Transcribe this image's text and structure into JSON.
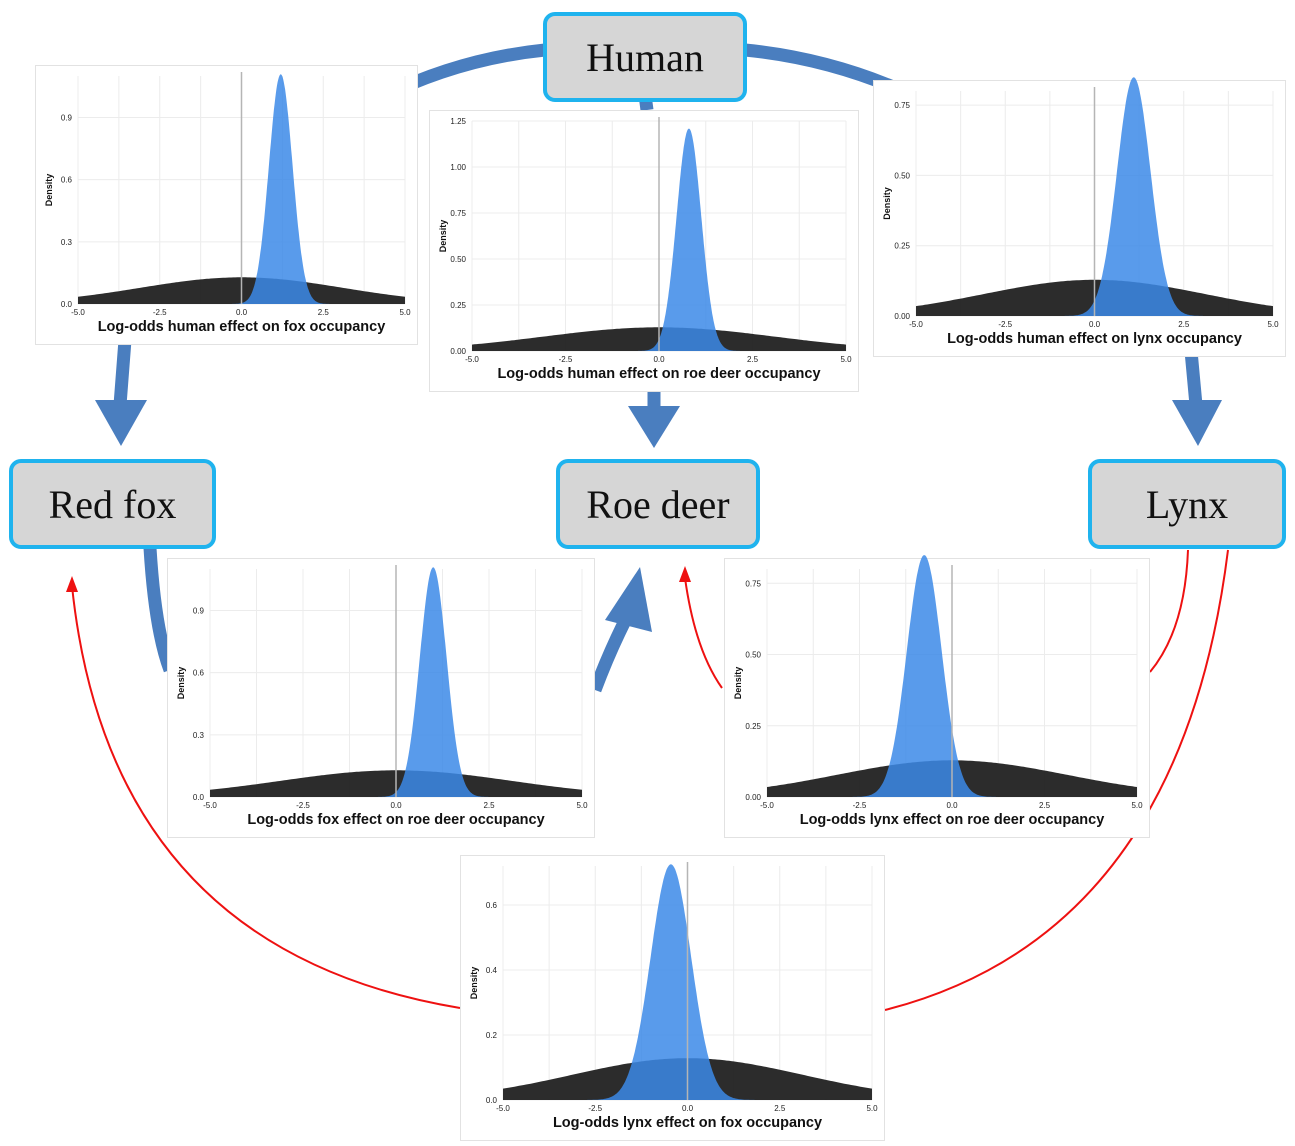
{
  "nodes": {
    "human": "Human",
    "red_fox": "Red fox",
    "roe_deer": "Roe deer",
    "lynx": "Lynx"
  },
  "colors": {
    "positive_effect_arrow": "#4a7ebf",
    "negative_effect_arrow": "#ee1111",
    "node_border": "#1fb3ee",
    "node_fill": "#d6d6d6",
    "posterior_fill": "#3c8ae8",
    "prior_fill": "#1a1a1a"
  },
  "chart_data": [
    {
      "id": "human_fox",
      "type": "area",
      "xlabel": "Log-odds human effect on fox occupancy",
      "ylabel": "Density",
      "xlim": [
        -5,
        5
      ],
      "ylim": [
        0,
        1.1
      ],
      "x_ticks": [
        "-5.0",
        "-2.5",
        "0.0",
        "2.5",
        "5.0"
      ],
      "y_ticks": [
        {
          "v": 0,
          "label": "0.0"
        },
        {
          "v": 0.3,
          "label": "0.3"
        },
        {
          "v": 0.6,
          "label": "0.6"
        },
        {
          "v": 0.9,
          "label": "0.9"
        }
      ],
      "prior": {
        "mean": 0,
        "sd": 3.1
      },
      "posterior": {
        "mean": 1.2,
        "sd": 0.36
      }
    },
    {
      "id": "human_roedeer",
      "type": "area",
      "xlabel": "Log-odds human effect on roe deer occupancy",
      "ylabel": "Density",
      "xlim": [
        -5,
        5
      ],
      "ylim": [
        0,
        1.25
      ],
      "x_ticks": [
        "-5.0",
        "-2.5",
        "0.0",
        "2.5",
        "5.0"
      ],
      "y_ticks": [
        {
          "v": 0,
          "label": "0.00"
        },
        {
          "v": 0.25,
          "label": "0.25"
        },
        {
          "v": 0.5,
          "label": "0.50"
        },
        {
          "v": 0.75,
          "label": "0.75"
        },
        {
          "v": 1.0,
          "label": "1.00"
        },
        {
          "v": 1.25,
          "label": "1.25"
        }
      ],
      "prior": {
        "mean": 0,
        "sd": 3.1
      },
      "posterior": {
        "mean": 0.8,
        "sd": 0.33
      }
    },
    {
      "id": "human_lynx",
      "type": "area",
      "xlabel": "Log-odds human effect on lynx occupancy",
      "ylabel": "Density",
      "xlim": [
        -5,
        5
      ],
      "ylim": [
        0,
        0.8
      ],
      "x_ticks": [
        "-5.0",
        "-2.5",
        "0.0",
        "2.5",
        "5.0"
      ],
      "y_ticks": [
        {
          "v": 0,
          "label": "0.00"
        },
        {
          "v": 0.25,
          "label": "0.25"
        },
        {
          "v": 0.5,
          "label": "0.50"
        },
        {
          "v": 0.75,
          "label": "0.75"
        }
      ],
      "prior": {
        "mean": 0,
        "sd": 3.1
      },
      "posterior": {
        "mean": 1.1,
        "sd": 0.47
      }
    },
    {
      "id": "fox_roedeer",
      "type": "area",
      "xlabel": "Log-odds fox effect on roe deer occupancy",
      "ylabel": "Density",
      "xlim": [
        -5,
        5
      ],
      "ylim": [
        0,
        1.1
      ],
      "x_ticks": [
        "-5.0",
        "-2.5",
        "0.0",
        "2.5",
        "5.0"
      ],
      "y_ticks": [
        {
          "v": 0,
          "label": "0.0"
        },
        {
          "v": 0.3,
          "label": "0.3"
        },
        {
          "v": 0.6,
          "label": "0.6"
        },
        {
          "v": 0.9,
          "label": "0.9"
        }
      ],
      "prior": {
        "mean": 0,
        "sd": 3.1
      },
      "posterior": {
        "mean": 1.0,
        "sd": 0.36
      }
    },
    {
      "id": "lynx_roedeer",
      "type": "area",
      "xlabel": "Log-odds lynx effect on roe deer occupancy",
      "ylabel": "Density",
      "xlim": [
        -5,
        5
      ],
      "ylim": [
        0,
        0.8
      ],
      "x_ticks": [
        "-5.0",
        "-2.5",
        "0.0",
        "2.5",
        "5.0"
      ],
      "y_ticks": [
        {
          "v": 0,
          "label": "0.00"
        },
        {
          "v": 0.25,
          "label": "0.25"
        },
        {
          "v": 0.5,
          "label": "0.50"
        },
        {
          "v": 0.75,
          "label": "0.75"
        }
      ],
      "prior": {
        "mean": 0,
        "sd": 3.1
      },
      "posterior": {
        "mean": -0.75,
        "sd": 0.47
      }
    },
    {
      "id": "lynx_fox",
      "type": "area",
      "xlabel": "Log-odds lynx effect on fox occupancy",
      "ylabel": "Density",
      "xlim": [
        -5,
        5
      ],
      "ylim": [
        0,
        0.72
      ],
      "x_ticks": [
        "-5.0",
        "-2.5",
        "0.0",
        "2.5",
        "5.0"
      ],
      "y_ticks": [
        {
          "v": 0,
          "label": "0.0"
        },
        {
          "v": 0.2,
          "label": "0.2"
        },
        {
          "v": 0.4,
          "label": "0.4"
        },
        {
          "v": 0.6,
          "label": "0.6"
        }
      ],
      "prior": {
        "mean": 0,
        "sd": 3.1
      },
      "posterior": {
        "mean": -0.45,
        "sd": 0.55
      }
    }
  ]
}
